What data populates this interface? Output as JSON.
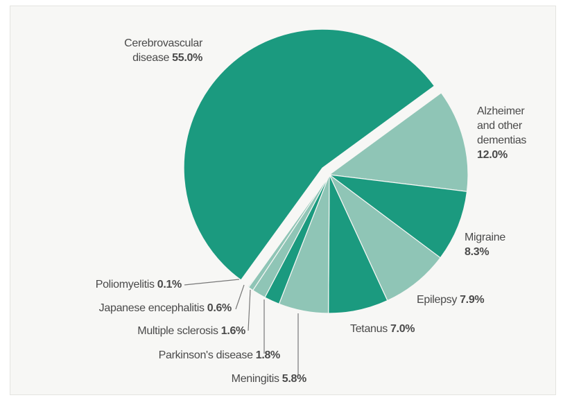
{
  "chart_data": {
    "type": "pie",
    "categories": [
      "Cerebrovascular disease",
      "Alzheimer and other dementias",
      "Migraine",
      "Epilepsy",
      "Tetanus",
      "Meningitis",
      "Parkinson's disease",
      "Multiple sclerosis",
      "Japanese encephalitis",
      "Poliomyelitis"
    ],
    "values": [
      55.0,
      12.0,
      8.3,
      7.9,
      7.0,
      5.8,
      1.8,
      1.6,
      0.6,
      0.1
    ],
    "value_labels": [
      "55.0%",
      "12.0%",
      "8.3%",
      "7.9%",
      "7.0%",
      "5.8%",
      "1.8%",
      "1.6%",
      "0.6%",
      "0.1%"
    ],
    "colors": [
      "#1b9a7f",
      "#8fc5b6",
      "#1b9a7f",
      "#8fc5b6",
      "#1b9a7f",
      "#8fc5b6",
      "#1b9a7f",
      "#8fc5b6",
      "#8fc5b6",
      "#1b9a7f"
    ]
  }
}
